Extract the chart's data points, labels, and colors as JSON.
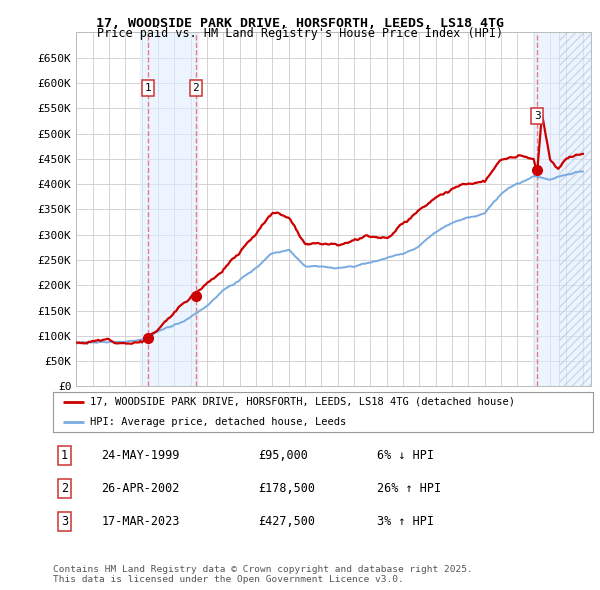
{
  "title1": "17, WOODSIDE PARK DRIVE, HORSFORTH, LEEDS, LS18 4TG",
  "title2": "Price paid vs. HM Land Registry's House Price Index (HPI)",
  "xlim_start": 1995.0,
  "xlim_end": 2026.5,
  "ylim_min": 0,
  "ylim_max": 700000,
  "yticks": [
    0,
    50000,
    100000,
    150000,
    200000,
    250000,
    300000,
    350000,
    400000,
    450000,
    500000,
    550000,
    600000,
    650000
  ],
  "ytick_labels": [
    "£0",
    "£50K",
    "£100K",
    "£150K",
    "£200K",
    "£250K",
    "£300K",
    "£350K",
    "£400K",
    "£450K",
    "£500K",
    "£550K",
    "£600K",
    "£650K"
  ],
  "sale_dates": [
    1999.39,
    2002.32,
    2023.21
  ],
  "sale_prices": [
    95000,
    178500,
    427500
  ],
  "hpi_color": "#7aabe0",
  "price_color": "#cc0000",
  "background_color": "#ffffff",
  "grid_color": "#cccccc",
  "vline_color": "#e87070",
  "vspan_color": "#ddeeff",
  "legend_line1": "17, WOODSIDE PARK DRIVE, HORSFORTH, LEEDS, LS18 4TG (detached house)",
  "legend_line2": "HPI: Average price, detached house, Leeds",
  "table_rows": [
    [
      "1",
      "24-MAY-1999",
      "£95,000",
      "6% ↓ HPI"
    ],
    [
      "2",
      "26-APR-2002",
      "£178,500",
      "26% ↑ HPI"
    ],
    [
      "3",
      "17-MAR-2023",
      "£427,500",
      "3% ↑ HPI"
    ]
  ],
  "footnote": "Contains HM Land Registry data © Crown copyright and database right 2025.\nThis data is licensed under the Open Government Licence v3.0."
}
